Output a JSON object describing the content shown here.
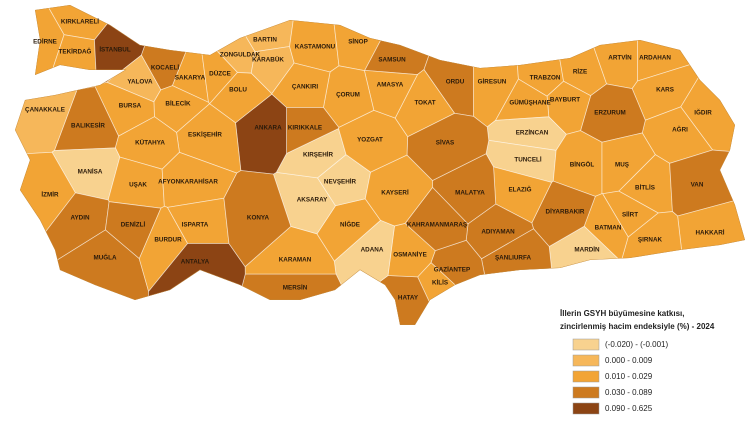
{
  "map": {
    "provinces": [
      {
        "name": "KIRKLARELİ",
        "color": "#f2a435"
      },
      {
        "name": "EDİRNE",
        "color": "#f2a435"
      },
      {
        "name": "TEKİRDAĞ",
        "color": "#f2a435"
      },
      {
        "name": "İSTANBUL",
        "color": "#8c4414"
      },
      {
        "name": "KOCAELİ",
        "color": "#cd7a1f"
      },
      {
        "name": "SAKARYA",
        "color": "#f2a435"
      },
      {
        "name": "YALOVA",
        "color": "#f6b75a"
      },
      {
        "name": "DÜZCE",
        "color": "#f2a435"
      },
      {
        "name": "ZONGULDAK",
        "color": "#f6b75a"
      },
      {
        "name": "BARTIN",
        "color": "#f6b75a"
      },
      {
        "name": "KARABÜK",
        "color": "#f6b75a"
      },
      {
        "name": "KASTAMONU",
        "color": "#f2a435"
      },
      {
        "name": "SİNOP",
        "color": "#f2a435"
      },
      {
        "name": "SAMSUN",
        "color": "#cd7a1f"
      },
      {
        "name": "ORDU",
        "color": "#cd7a1f"
      },
      {
        "name": "GİRESUN",
        "color": "#f2a435"
      },
      {
        "name": "TRABZON",
        "color": "#f2a435"
      },
      {
        "name": "RİZE",
        "color": "#f2a435"
      },
      {
        "name": "ARTVİN",
        "color": "#f2a435"
      },
      {
        "name": "ARDAHAN",
        "color": "#f2a435"
      },
      {
        "name": "KARS",
        "color": "#f2a435"
      },
      {
        "name": "IĞDIR",
        "color": "#f2a435"
      },
      {
        "name": "AĞRI",
        "color": "#f2a435"
      },
      {
        "name": "ERZURUM",
        "color": "#cd7a1f"
      },
      {
        "name": "BAYBURT",
        "color": "#f2a435"
      },
      {
        "name": "GÜMÜŞHANE",
        "color": "#f2a435"
      },
      {
        "name": "ERZİNCAN",
        "color": "#f8d28f"
      },
      {
        "name": "TUNCELİ",
        "color": "#f8d28f"
      },
      {
        "name": "BİNGÖL",
        "color": "#f2a435"
      },
      {
        "name": "MUŞ",
        "color": "#f2a435"
      },
      {
        "name": "BİTLİS",
        "color": "#f2a435"
      },
      {
        "name": "VAN",
        "color": "#cd7a1f"
      },
      {
        "name": "HAKKARİ",
        "color": "#f2a435"
      },
      {
        "name": "ŞIRNAK",
        "color": "#f2a435"
      },
      {
        "name": "SİİRT",
        "color": "#f2a435"
      },
      {
        "name": "BATMAN",
        "color": "#f2a435"
      },
      {
        "name": "MARDİN",
        "color": "#f8d28f"
      },
      {
        "name": "DİYARBAKIR",
        "color": "#cd7a1f"
      },
      {
        "name": "ELAZIĞ",
        "color": "#f2a435"
      },
      {
        "name": "MALATYA",
        "color": "#cd7a1f"
      },
      {
        "name": "ADIYAMAN",
        "color": "#cd7a1f"
      },
      {
        "name": "ŞANLIURFA",
        "color": "#cd7a1f"
      },
      {
        "name": "GAZİANTEP",
        "color": "#cd7a1f"
      },
      {
        "name": "KİLİS",
        "color": "#f2a435"
      },
      {
        "name": "HATAY",
        "color": "#cd7a1f"
      },
      {
        "name": "OSMANİYE",
        "color": "#f2a435"
      },
      {
        "name": "KAHRAMANMARAŞ",
        "color": "#cd7a1f"
      },
      {
        "name": "ADANA",
        "color": "#f8d28f"
      },
      {
        "name": "MERSİN",
        "color": "#cd7a1f"
      },
      {
        "name": "KARAMAN",
        "color": "#f2a435"
      },
      {
        "name": "NİĞDE",
        "color": "#f2a435"
      },
      {
        "name": "AKSARAY",
        "color": "#f8d28f"
      },
      {
        "name": "NEVŞEHİR",
        "color": "#f8d28f"
      },
      {
        "name": "KIRŞEHİR",
        "color": "#f8d28f"
      },
      {
        "name": "KAYSERİ",
        "color": "#f2a435"
      },
      {
        "name": "SİVAS",
        "color": "#cd7a1f"
      },
      {
        "name": "YOZGAT",
        "color": "#f2a435"
      },
      {
        "name": "TOKAT",
        "color": "#f2a435"
      },
      {
        "name": "AMASYA",
        "color": "#f2a435"
      },
      {
        "name": "ÇORUM",
        "color": "#f2a435"
      },
      {
        "name": "ÇANKIRI",
        "color": "#f2a435"
      },
      {
        "name": "KIRIKKALE",
        "color": "#cd7a1f"
      },
      {
        "name": "ANKARA",
        "color": "#8c4414"
      },
      {
        "name": "BOLU",
        "color": "#f2a435"
      },
      {
        "name": "BİLECİK",
        "color": "#f2a435"
      },
      {
        "name": "BURSA",
        "color": "#f2a435"
      },
      {
        "name": "BALIKESİR",
        "color": "#cd7a1f"
      },
      {
        "name": "ÇANAKKALE",
        "color": "#f6b75a"
      },
      {
        "name": "ESKİŞEHİR",
        "color": "#f2a435"
      },
      {
        "name": "KÜTAHYA",
        "color": "#f2a435"
      },
      {
        "name": "MANİSA",
        "color": "#f8d28f"
      },
      {
        "name": "İZMİR",
        "color": "#f2a435"
      },
      {
        "name": "UŞAK",
        "color": "#f2a435"
      },
      {
        "name": "AFYONKARAHİSAR",
        "color": "#f2a435"
      },
      {
        "name": "AYDIN",
        "color": "#cd7a1f"
      },
      {
        "name": "DENİZLİ",
        "color": "#cd7a1f"
      },
      {
        "name": "MUĞLA",
        "color": "#cd7a1f"
      },
      {
        "name": "BURDUR",
        "color": "#f2a435"
      },
      {
        "name": "ISPARTA",
        "color": "#f2a435"
      },
      {
        "name": "ANTALYA",
        "color": "#8c4414"
      },
      {
        "name": "KONYA",
        "color": "#cd7a1f"
      }
    ]
  },
  "legend": {
    "title": [
      "İllerin GSYH büyümesine katkısı,",
      "zincirlenmiş hacim endeksiyle (%) - 2024"
    ],
    "items": [
      {
        "label": "(-0.020) - (-0.001)",
        "color": "#f8d28f"
      },
      {
        "label": "0.000 - 0.009",
        "color": "#f6b75a"
      },
      {
        "label": "0.010 - 0.029",
        "color": "#f2a435"
      },
      {
        "label": "0.030 - 0.089",
        "color": "#cd7a1f"
      },
      {
        "label": "0.090 - 0.625",
        "color": "#8c4414"
      }
    ]
  }
}
